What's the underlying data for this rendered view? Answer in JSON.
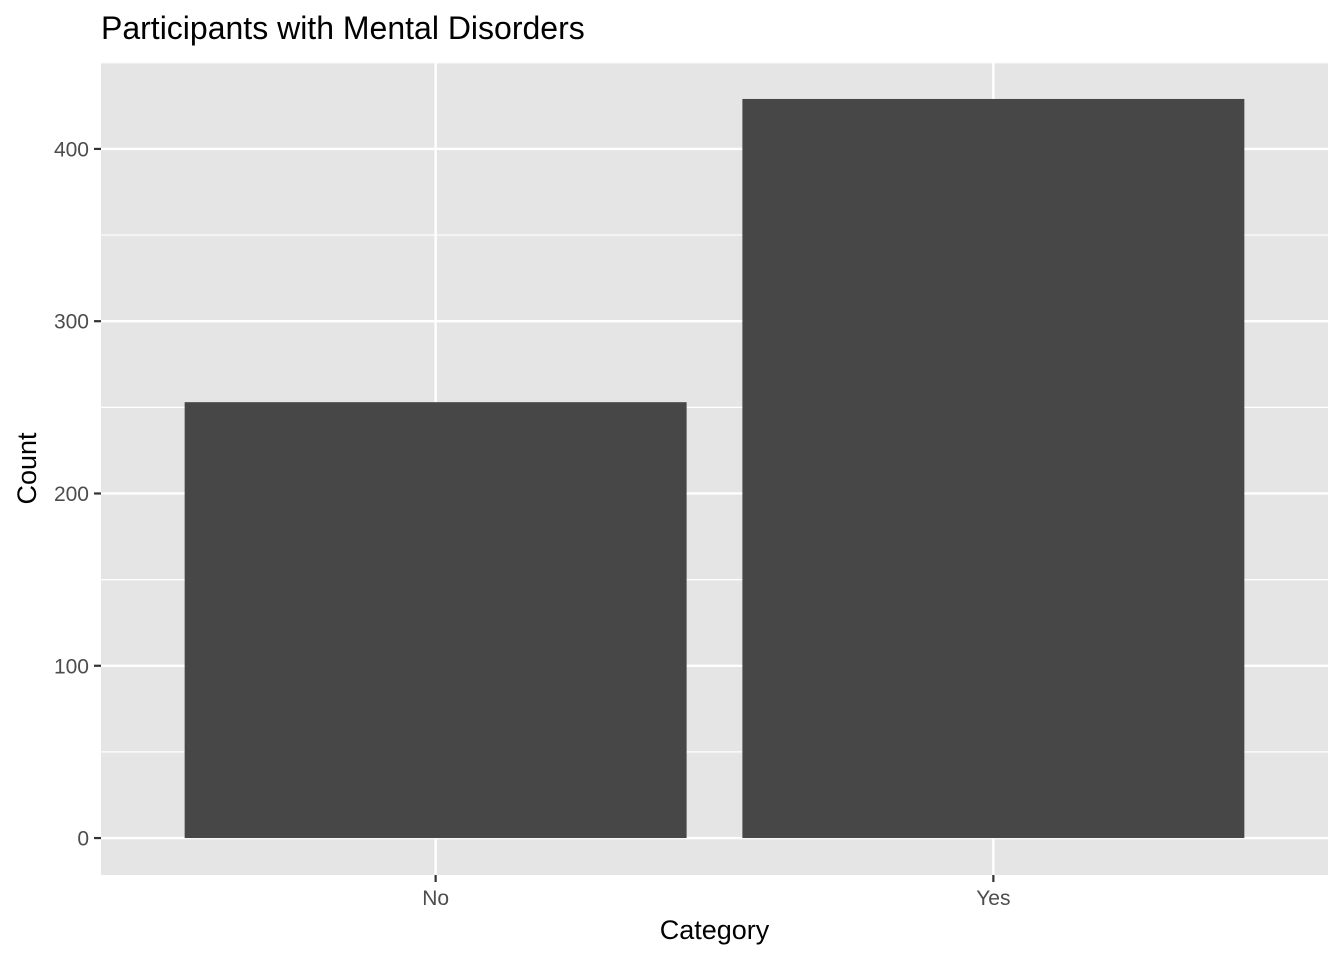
{
  "chart_data": {
    "type": "bar",
    "title": "Participants with Mental Disorders",
    "xlabel": "Category",
    "ylabel": "Count",
    "categories": [
      "No",
      "Yes"
    ],
    "values": [
      253,
      429
    ],
    "ylim": [
      -21.45,
      450.45
    ],
    "yticks": [
      0,
      100,
      200,
      300,
      400
    ],
    "grid": true,
    "legend": "none",
    "colors": {
      "bar": "#474747",
      "panel": "#e5e5e5",
      "grid": "#ffffff",
      "tick": "#333333"
    }
  }
}
